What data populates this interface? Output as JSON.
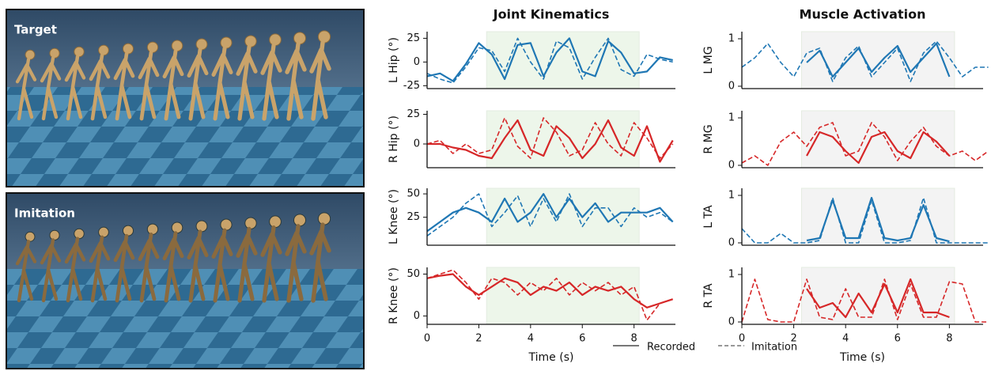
{
  "images": [
    {
      "label": "Target"
    },
    {
      "label": "Imitation"
    }
  ],
  "chart_data": [
    {
      "type": "line",
      "title": "Joint Kinematics",
      "ylabel": "L Hip (°)",
      "x": [
        0,
        0.5,
        1,
        1.5,
        2,
        2.5,
        3,
        3.5,
        4,
        4.5,
        5,
        5.5,
        6,
        6.5,
        7,
        7.5,
        8,
        8.5,
        9,
        9.5
      ],
      "series": [
        {
          "name": "Recorded",
          "color": "#1f77b4",
          "dash": false,
          "values": [
            -15,
            -12,
            -20,
            -2,
            20,
            8,
            -18,
            18,
            20,
            -15,
            10,
            25,
            -10,
            -15,
            22,
            10,
            -12,
            -10,
            5,
            2
          ]
        },
        {
          "name": "Imitation",
          "color": "#1f77b4",
          "dash": true,
          "values": [
            -12,
            -18,
            -22,
            -5,
            15,
            12,
            -10,
            25,
            0,
            -18,
            22,
            15,
            -18,
            5,
            25,
            -8,
            -15,
            8,
            3,
            0
          ]
        }
      ],
      "xlim": [
        0,
        9.6
      ],
      "ylim": [
        -28,
        32
      ],
      "yticks": [
        -25,
        0,
        25
      ],
      "shade": [
        2.3,
        8.2
      ],
      "shade_color": "#edf6ea"
    },
    {
      "type": "line",
      "ylabel": "R Hip (°)",
      "x": [
        0,
        0.5,
        1,
        1.5,
        2,
        2.5,
        3,
        3.5,
        4,
        4.5,
        5,
        5.5,
        6,
        6.5,
        7,
        7.5,
        8,
        8.5,
        9,
        9.5
      ],
      "series": [
        {
          "name": "Recorded",
          "color": "#d62728",
          "dash": false,
          "values": [
            0,
            0,
            -3,
            -5,
            -10,
            -12,
            5,
            20,
            -5,
            -10,
            15,
            5,
            -12,
            0,
            20,
            -3,
            -10,
            15,
            -15,
            3
          ]
        },
        {
          "name": "Imitation",
          "color": "#d62728",
          "dash": true,
          "values": [
            0,
            3,
            -8,
            0,
            -8,
            -5,
            22,
            -2,
            -12,
            22,
            10,
            -10,
            -5,
            18,
            0,
            -10,
            18,
            5,
            -12,
            0
          ]
        }
      ],
      "xlim": [
        0,
        9.6
      ],
      "ylim": [
        -20,
        28
      ],
      "yticks": [
        0,
        25
      ],
      "shade": [
        2.3,
        8.2
      ],
      "shade_color": "#edf6ea"
    },
    {
      "type": "line",
      "ylabel": "L Knee (°)",
      "x": [
        0,
        0.5,
        1,
        1.5,
        2,
        2.5,
        3,
        3.5,
        4,
        4.5,
        5,
        5.5,
        6,
        6.5,
        7,
        7.5,
        8,
        8.5,
        9,
        9.5
      ],
      "series": [
        {
          "name": "Recorded",
          "color": "#1f77b4",
          "dash": false,
          "values": [
            10,
            20,
            30,
            35,
            30,
            20,
            45,
            20,
            30,
            50,
            25,
            45,
            25,
            40,
            20,
            30,
            30,
            30,
            35,
            20
          ]
        },
        {
          "name": "Imitation",
          "color": "#1f77b4",
          "dash": true,
          "values": [
            5,
            15,
            25,
            40,
            50,
            15,
            30,
            48,
            15,
            45,
            20,
            50,
            15,
            35,
            35,
            15,
            35,
            25,
            30,
            20
          ]
        }
      ],
      "xlim": [
        0,
        9.6
      ],
      "ylim": [
        -5,
        56
      ],
      "yticks": [
        25,
        50
      ],
      "shade": [
        2.3,
        8.2
      ],
      "shade_color": "#edf6ea"
    },
    {
      "type": "line",
      "ylabel": "R Knee (°)",
      "xlabel": "Time (s)",
      "x": [
        0,
        0.5,
        1,
        1.5,
        2,
        2.5,
        3,
        3.5,
        4,
        4.5,
        5,
        5.5,
        6,
        6.5,
        7,
        7.5,
        8,
        8.5,
        9,
        9.5
      ],
      "series": [
        {
          "name": "Recorded",
          "color": "#d62728",
          "dash": false,
          "values": [
            45,
            48,
            50,
            35,
            25,
            35,
            45,
            40,
            25,
            35,
            30,
            40,
            25,
            35,
            30,
            35,
            20,
            10,
            15,
            20
          ]
        },
        {
          "name": "Imitation",
          "color": "#d62728",
          "dash": true,
          "values": [
            45,
            50,
            55,
            40,
            20,
            45,
            40,
            25,
            40,
            30,
            45,
            25,
            40,
            30,
            40,
            25,
            35,
            -5,
            15,
            20
          ]
        }
      ],
      "xlim": [
        0,
        9.6
      ],
      "ylim": [
        -10,
        58
      ],
      "yticks": [
        0,
        50
      ],
      "xticks": [
        0,
        2,
        4,
        6,
        8
      ],
      "shade": [
        2.3,
        8.2
      ],
      "shade_color": "#edf6ea"
    },
    {
      "type": "line",
      "title": "Muscle Activation",
      "ylabel": "L MG",
      "x": [
        0,
        0.5,
        1,
        1.5,
        2,
        2.5,
        3,
        3.5,
        4,
        4.5,
        5,
        5.5,
        6,
        6.5,
        7,
        7.5,
        8,
        8.5,
        9,
        9.5
      ],
      "series": [
        {
          "name": "Recorded",
          "color": "#1f77b4",
          "dash": false,
          "values": [
            null,
            null,
            null,
            null,
            null,
            0.5,
            0.75,
            0.2,
            0.5,
            0.8,
            0.3,
            0.6,
            0.85,
            0.3,
            0.6,
            0.9,
            0.2,
            null,
            null,
            null
          ]
        },
        {
          "name": "Imitation",
          "color": "#1f77b4",
          "dash": true,
          "values": [
            0.4,
            0.6,
            0.9,
            0.5,
            0.2,
            0.7,
            0.8,
            0.1,
            0.6,
            0.85,
            0.2,
            0.5,
            0.8,
            0.1,
            0.7,
            0.95,
            0.6,
            0.2,
            0.4,
            0.4
          ]
        }
      ],
      "xlim": [
        0,
        9.3
      ],
      "ylim": [
        -0.05,
        1.15
      ],
      "yticks": [
        0,
        1
      ],
      "shade": [
        2.3,
        8.2
      ],
      "shade_color": "#f3f3f3"
    },
    {
      "type": "line",
      "ylabel": "R MG",
      "x": [
        0,
        0.5,
        1,
        1.5,
        2,
        2.5,
        3,
        3.5,
        4,
        4.5,
        5,
        5.5,
        6,
        6.5,
        7,
        7.5,
        8,
        8.5,
        9,
        9.5
      ],
      "series": [
        {
          "name": "Recorded",
          "color": "#d62728",
          "dash": false,
          "values": [
            null,
            null,
            null,
            null,
            null,
            0.2,
            0.7,
            0.6,
            0.3,
            0.05,
            0.6,
            0.7,
            0.3,
            0.15,
            0.7,
            0.5,
            0.2,
            null,
            null,
            null
          ]
        },
        {
          "name": "Imitation",
          "color": "#d62728",
          "dash": true,
          "values": [
            0.05,
            0.2,
            0,
            0.5,
            0.7,
            0.4,
            0.8,
            0.9,
            0.2,
            0.3,
            0.9,
            0.6,
            0.1,
            0.5,
            0.8,
            0.4,
            0.2,
            0.3,
            0.1,
            0.3
          ]
        }
      ],
      "xlim": [
        0,
        9.3
      ],
      "ylim": [
        -0.05,
        1.15
      ],
      "yticks": [
        0,
        1
      ],
      "shade": [
        2.3,
        8.2
      ],
      "shade_color": "#f3f3f3"
    },
    {
      "type": "line",
      "ylabel": "L TA",
      "x": [
        0,
        0.5,
        1,
        1.5,
        2,
        2.5,
        3,
        3.5,
        4,
        4.5,
        5,
        5.5,
        6,
        6.5,
        7,
        7.5,
        8,
        8.5,
        9,
        9.5
      ],
      "series": [
        {
          "name": "Recorded",
          "color": "#1f77b4",
          "dash": false,
          "values": [
            null,
            null,
            null,
            null,
            null,
            0.05,
            0.1,
            0.9,
            0.1,
            0.1,
            0.95,
            0.1,
            0.05,
            0.1,
            0.8,
            0.1,
            0.03,
            null,
            null,
            null
          ]
        },
        {
          "name": "Imitation",
          "color": "#1f77b4",
          "dash": true,
          "values": [
            0.3,
            0,
            0,
            0.2,
            0,
            0,
            0.05,
            0.95,
            0,
            0,
            0.9,
            0,
            0,
            0.05,
            0.95,
            0,
            0,
            0,
            0,
            0
          ]
        }
      ],
      "xlim": [
        0,
        9.3
      ],
      "ylim": [
        -0.05,
        1.15
      ],
      "yticks": [
        0,
        1
      ],
      "shade": [
        2.3,
        8.2
      ],
      "shade_color": "#f3f3f3"
    },
    {
      "type": "line",
      "ylabel": "R TA",
      "xlabel": "Time (s)",
      "x": [
        0,
        0.5,
        1,
        1.5,
        2,
        2.5,
        3,
        3.5,
        4,
        4.5,
        5,
        5.5,
        6,
        6.5,
        7,
        7.5,
        8,
        8.5,
        9,
        9.5
      ],
      "series": [
        {
          "name": "Recorded",
          "color": "#d62728",
          "dash": false,
          "values": [
            null,
            null,
            null,
            null,
            null,
            0.7,
            0.3,
            0.4,
            0.1,
            0.6,
            0.2,
            0.8,
            0.2,
            0.9,
            0.2,
            0.2,
            0.1,
            null,
            null,
            null
          ]
        },
        {
          "name": "Imitation",
          "color": "#d62728",
          "dash": true,
          "values": [
            0,
            0.9,
            0.05,
            0,
            0,
            0.9,
            0.1,
            0.05,
            0.7,
            0.1,
            0.1,
            0.9,
            0.05,
            0.8,
            0.1,
            0.1,
            0.85,
            0.8,
            0,
            0
          ]
        }
      ],
      "xlim": [
        0,
        9.3
      ],
      "ylim": [
        -0.05,
        1.15
      ],
      "yticks": [
        0,
        1
      ],
      "xticks": [
        0,
        2,
        4,
        6,
        8
      ],
      "shade": [
        2.3,
        8.2
      ],
      "shade_color": "#f3f3f3"
    }
  ]
}
